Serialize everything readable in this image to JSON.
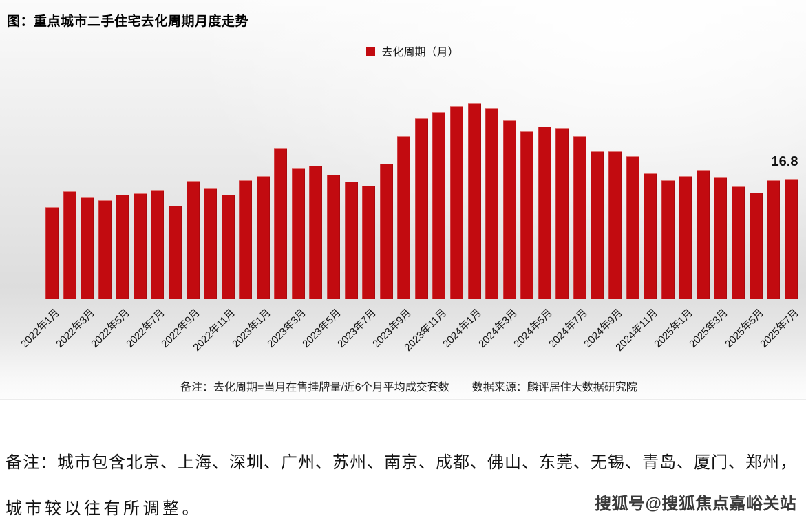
{
  "title": "图：重点城市二手住宅去化周期月度走势",
  "legend": {
    "label": "去化周期（月）"
  },
  "colors": {
    "bar": "#c20b10"
  },
  "chart_data": {
    "type": "bar",
    "title": "重点城市二手住宅去化周期月度走势",
    "series_name": "去化周期（月）",
    "xlabel": "",
    "ylabel": "去化周期（月）",
    "ylim": [
      0,
      30
    ],
    "grid": false,
    "legend_position": "top-center",
    "x_tick_interval": 2,
    "categories": [
      "2022年1月",
      "2022年2月",
      "2022年3月",
      "2022年4月",
      "2022年5月",
      "2022年6月",
      "2022年7月",
      "2022年8月",
      "2022年9月",
      "2022年10月",
      "2022年11月",
      "2022年12月",
      "2023年1月",
      "2023年2月",
      "2023年3月",
      "2023年4月",
      "2023年5月",
      "2023年6月",
      "2023年7月",
      "2023年8月",
      "2023年9月",
      "2023年10月",
      "2023年11月",
      "2023年12月",
      "2024年1月",
      "2024年2月",
      "2024年3月",
      "2024年4月",
      "2024年5月",
      "2024年6月",
      "2024年7月",
      "2024年8月",
      "2024年9月",
      "2024年10月",
      "2024年11月",
      "2024年12月",
      "2025年1月",
      "2025年2月",
      "2025年3月",
      "2025年4月",
      "2025年5月",
      "2025年6月",
      "2025年7月"
    ],
    "values": [
      12.9,
      15.1,
      14.2,
      13.8,
      14.6,
      14.8,
      15.3,
      13.1,
      16.5,
      15.5,
      14.6,
      16.6,
      17.2,
      21.2,
      18.4,
      18.7,
      17.4,
      16.4,
      15.9,
      19.0,
      22.8,
      25.3,
      26.2,
      27.1,
      27.5,
      26.8,
      25.1,
      23.5,
      24.2,
      24.0,
      22.8,
      20.7,
      20.7,
      20.0,
      17.6,
      16.6,
      17.2,
      18.1,
      17.0,
      15.8,
      14.9,
      16.6,
      16.8
    ],
    "annotations": [
      {
        "category": "2025年7月",
        "text": "16.8"
      }
    ]
  },
  "footnote": {
    "left": "备注：去化周期=当月在售挂牌量/近6个月平均成交套数",
    "right": "数据来源：麟评居住大数据研究院"
  },
  "bottom_note": {
    "line1": "备注：城市包含北京、上海、深圳、广州、苏州、南京、成都、佛山、东莞、无锡、青岛、厦门、郑州，",
    "line2": "城市较以往有所调整。"
  },
  "watermark": "搜狐号@搜狐焦点嘉峪关站"
}
